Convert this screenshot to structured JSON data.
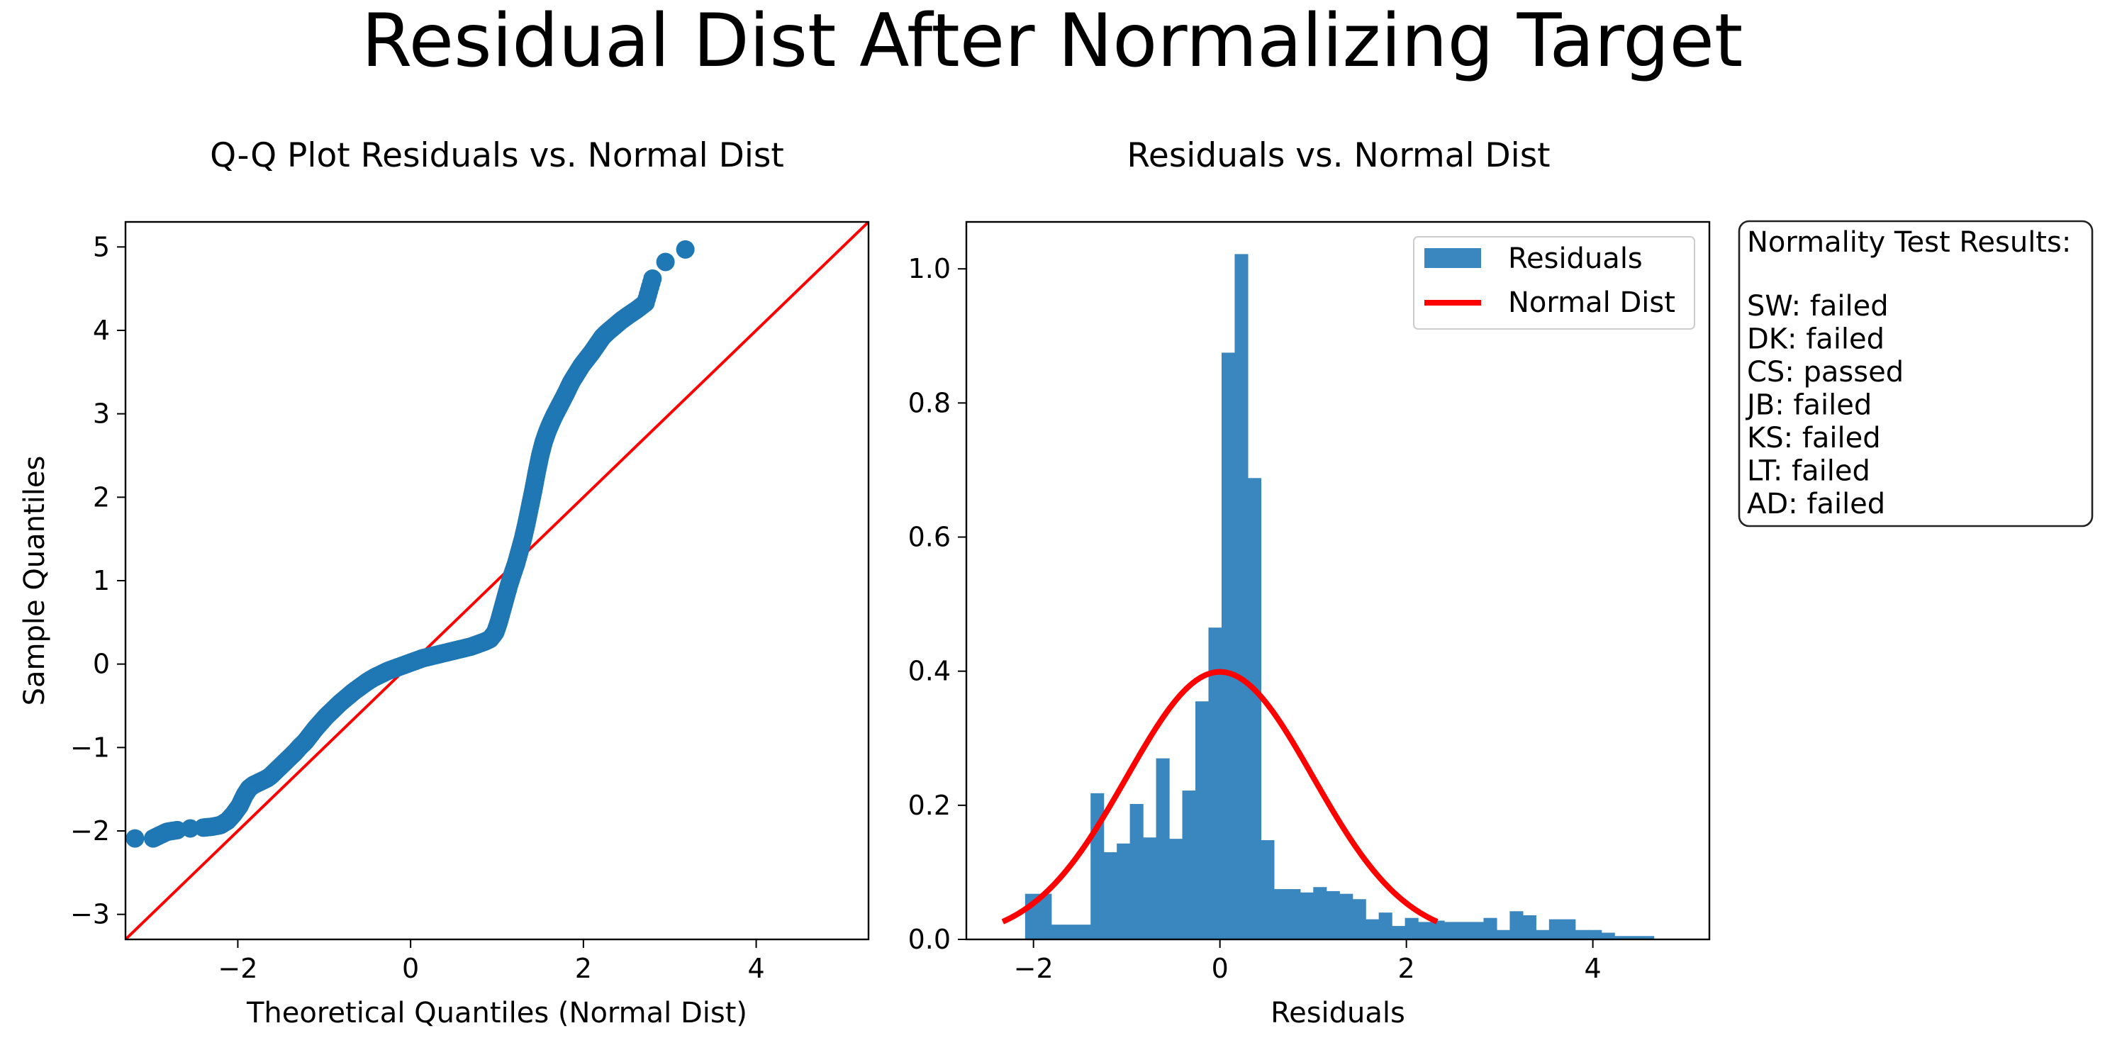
{
  "figure": {
    "suptitle": "Residual Dist After Normalizing Target"
  },
  "chart_data": [
    {
      "type": "scatter",
      "title": "Q-Q Plot Residuals vs. Normal Dist",
      "xlabel": "Theoretical Quantiles (Normal Dist)",
      "ylabel": "Sample Quantiles",
      "xlim": [
        -3.3,
        5.3
      ],
      "ylim": [
        -3.3,
        5.3
      ],
      "xticks": [
        -2,
        0,
        2,
        4
      ],
      "yticks": [
        -3,
        -2,
        -1,
        0,
        1,
        2,
        3,
        4,
        5
      ],
      "xtick_labels": [
        "−2",
        "0",
        "2",
        "4"
      ],
      "ytick_labels": [
        "−3",
        "−2",
        "−1",
        "0",
        "1",
        "2",
        "3",
        "4",
        "5"
      ],
      "grid": false,
      "reference_line": {
        "slope": 1,
        "intercept": 0,
        "color": "#ff0000"
      },
      "marker_color": "#1f77b4",
      "points": {
        "x": [
          -3.19,
          -2.98,
          -2.9,
          -2.82,
          -2.7,
          -2.55,
          -2.4,
          -2.3,
          -2.2,
          -2.12,
          -2.05,
          -1.98,
          -1.92,
          -1.87,
          -1.82,
          -1.78,
          -1.74,
          -1.7,
          -1.66,
          -1.62,
          -1.58,
          -1.52,
          -1.46,
          -1.4,
          -1.34,
          -1.28,
          -1.22,
          -1.16,
          -1.1,
          -1.04,
          -0.98,
          -0.9,
          -0.82,
          -0.74,
          -0.66,
          -0.58,
          -0.5,
          -0.42,
          -0.34,
          -0.26,
          -0.18,
          -0.1,
          -0.02,
          0.06,
          0.14,
          0.22,
          0.3,
          0.38,
          0.46,
          0.54,
          0.62,
          0.7,
          0.78,
          0.86,
          0.92,
          0.98,
          1.02,
          1.06,
          1.1,
          1.14,
          1.18,
          1.22,
          1.26,
          1.3,
          1.34,
          1.38,
          1.42,
          1.46,
          1.5,
          1.54,
          1.58,
          1.62,
          1.66,
          1.7,
          1.74,
          1.8,
          1.86,
          1.92,
          1.98,
          2.04,
          2.1,
          2.16,
          2.22,
          2.28,
          2.36,
          2.44,
          2.52,
          2.62,
          2.72,
          2.8,
          2.95,
          3.18
        ],
        "y": [
          -2.09,
          -2.09,
          -2.05,
          -2.01,
          -1.99,
          -1.97,
          -1.96,
          -1.95,
          -1.93,
          -1.88,
          -1.8,
          -1.7,
          -1.57,
          -1.49,
          -1.45,
          -1.43,
          -1.41,
          -1.39,
          -1.37,
          -1.34,
          -1.3,
          -1.24,
          -1.18,
          -1.12,
          -1.06,
          -0.99,
          -0.93,
          -0.85,
          -0.77,
          -0.7,
          -0.63,
          -0.55,
          -0.47,
          -0.4,
          -0.33,
          -0.27,
          -0.21,
          -0.16,
          -0.12,
          -0.08,
          -0.05,
          -0.02,
          0.01,
          0.04,
          0.07,
          0.09,
          0.11,
          0.13,
          0.15,
          0.17,
          0.19,
          0.21,
          0.24,
          0.27,
          0.3,
          0.38,
          0.5,
          0.65,
          0.8,
          0.95,
          1.08,
          1.2,
          1.35,
          1.5,
          1.68,
          1.88,
          2.08,
          2.3,
          2.5,
          2.66,
          2.78,
          2.88,
          2.97,
          3.05,
          3.13,
          3.25,
          3.38,
          3.48,
          3.58,
          3.66,
          3.74,
          3.83,
          3.92,
          3.98,
          4.05,
          4.12,
          4.18,
          4.25,
          4.33,
          4.62,
          4.82,
          4.97
        ]
      }
    },
    {
      "type": "bar",
      "title": "Residuals vs. Normal Dist",
      "xlabel": "Residuals",
      "ylabel": "",
      "xlim": [
        -2.72,
        5.25
      ],
      "ylim": [
        0,
        1.07
      ],
      "xticks": [
        -2,
        0,
        2,
        4
      ],
      "yticks": [
        0.0,
        0.2,
        0.4,
        0.6,
        0.8,
        1.0
      ],
      "xtick_labels": [
        "−2",
        "0",
        "2",
        "4"
      ],
      "ytick_labels": [
        "0.0",
        "0.2",
        "0.4",
        "0.6",
        "0.8",
        "1.0"
      ],
      "grid": false,
      "legend_position": "top-right",
      "series": [
        {
          "name": "Residuals",
          "kind": "histogram",
          "color": "#3a86be",
          "bin_start": -2.09,
          "bin_width": 0.1405,
          "densities": [
            0.068,
            0.068,
            0.022,
            0.022,
            0.022,
            0.218,
            0.13,
            0.143,
            0.202,
            0.152,
            0.27,
            0.15,
            0.222,
            0.355,
            0.465,
            0.875,
            1.022,
            0.688,
            0.148,
            0.075,
            0.075,
            0.07,
            0.078,
            0.072,
            0.068,
            0.06,
            0.03,
            0.04,
            0.02,
            0.032,
            0.026,
            0.028,
            0.026,
            0.026,
            0.026,
            0.032,
            0.014,
            0.042,
            0.036,
            0.014,
            0.03,
            0.03,
            0.014,
            0.014,
            0.01,
            0.005,
            0.005,
            0.005
          ]
        },
        {
          "name": "Normal Dist",
          "kind": "line",
          "color": "#ff0000",
          "distribution": "standard normal",
          "x_range": [
            -2.33,
            2.33
          ]
        }
      ]
    }
  ],
  "text_box": {
    "title": "Normality Test Results:",
    "lines": [
      "SW: failed",
      "DK: failed",
      "CS: passed",
      "JB: failed",
      "KS: failed",
      "LT: failed",
      "AD: failed"
    ]
  }
}
